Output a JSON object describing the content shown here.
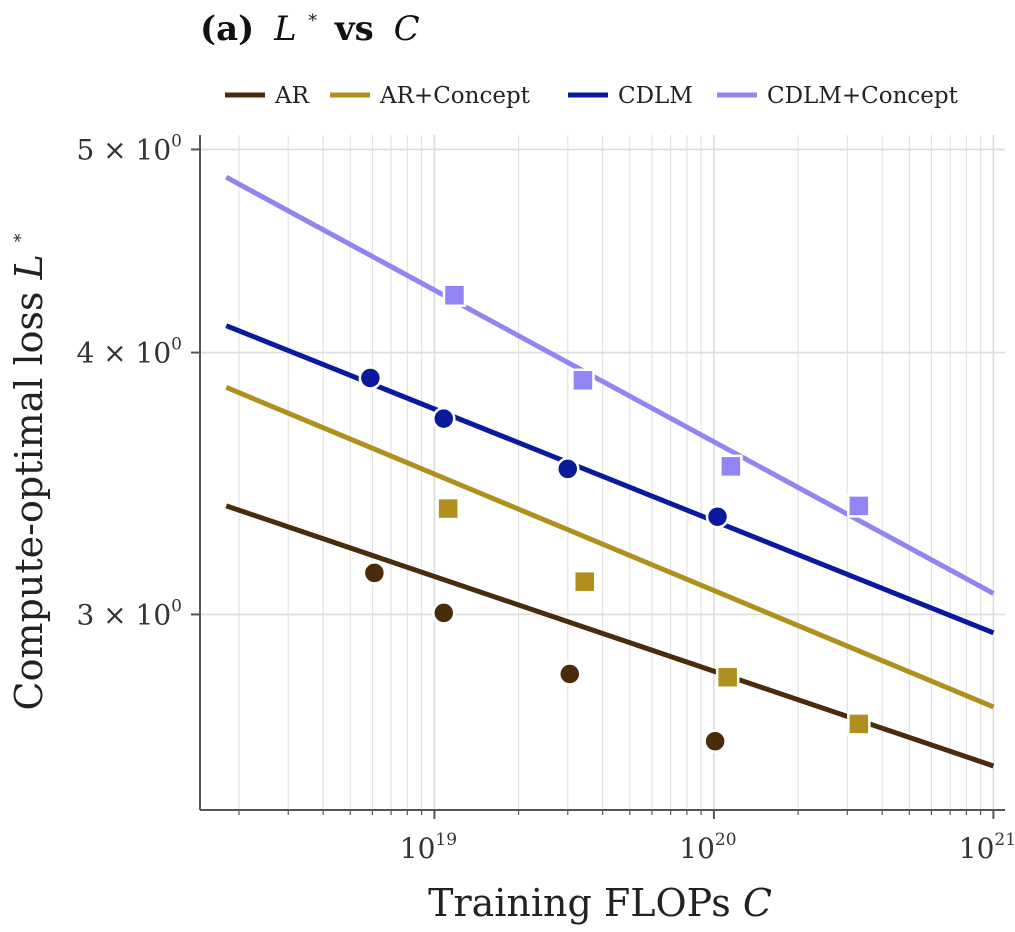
{
  "chart_data": {
    "type": "line",
    "title": "(a) L* vs C",
    "title_parts": {
      "prefix": "(a)",
      "var1": "L",
      "star": "*",
      "vs": "vs",
      "var2": "C"
    },
    "xlabel": "Training FLOPs C",
    "xlabel_parts": {
      "text": "Training FLOPs",
      "var": "C"
    },
    "ylabel": "Compute-optimal loss L*",
    "ylabel_parts": {
      "text": "Compute-optimal loss",
      "var": "L",
      "star": "*"
    },
    "xscale": "log",
    "yscale": "log",
    "xlim": [
      1.45e+18,
      1.1e+21
    ],
    "ylim": [
      2.42,
      5.08
    ],
    "x_ticks": [
      {
        "value": 1e+19,
        "base": "10",
        "exp": "19"
      },
      {
        "value": 1e+20,
        "base": "10",
        "exp": "20"
      },
      {
        "value": 1e+21,
        "base": "10",
        "exp": "21"
      }
    ],
    "y_ticks": [
      {
        "value": 3,
        "label": "3 × 10",
        "exp": "0"
      },
      {
        "value": 4,
        "label": "4 × 10",
        "exp": "0"
      },
      {
        "value": 5,
        "label": "5 × 10",
        "exp": "0"
      }
    ],
    "grid": true,
    "legend_position": "top",
    "series": [
      {
        "name": "AR",
        "color": "#4a2c0d",
        "marker": "circle",
        "fit_x": [
          1.8e+18,
          1e+21
        ],
        "fit_y": [
          3.38,
          2.54
        ],
        "points": [
          [
            6.1e+18,
            3.14
          ],
          [
            1.08e+19,
            3.005
          ],
          [
            3.05e+19,
            2.81
          ],
          [
            1.01e+20,
            2.61
          ]
        ]
      },
      {
        "name": "AR+Concept",
        "color": "#b08f1e",
        "marker": "square",
        "fit_x": [
          1.8e+18,
          1e+21
        ],
        "fit_y": [
          3.85,
          2.71
        ],
        "points": [
          [
            1.12e+19,
            3.37
          ],
          [
            3.45e+19,
            3.11
          ],
          [
            1.12e+20,
            2.8
          ],
          [
            3.3e+20,
            2.66
          ]
        ]
      },
      {
        "name": "CDLM",
        "color": "#0a1a9c",
        "marker": "circle",
        "fit_x": [
          1.8e+18,
          1e+21
        ],
        "fit_y": [
          4.12,
          2.94
        ],
        "points": [
          [
            5.9e+18,
            3.89
          ],
          [
            1.08e+19,
            3.72
          ],
          [
            3e+19,
            3.52
          ],
          [
            1.03e+20,
            3.34
          ]
        ]
      },
      {
        "name": "CDLM+Concept",
        "color": "#9085f2",
        "marker": "square",
        "fit_x": [
          1.8e+18,
          1e+21
        ],
        "fit_y": [
          4.85,
          3.07
        ],
        "points": [
          [
            1.18e+19,
            4.26
          ],
          [
            3.4e+19,
            3.88
          ],
          [
            1.15e+20,
            3.53
          ],
          [
            3.3e+20,
            3.38
          ]
        ]
      }
    ]
  }
}
